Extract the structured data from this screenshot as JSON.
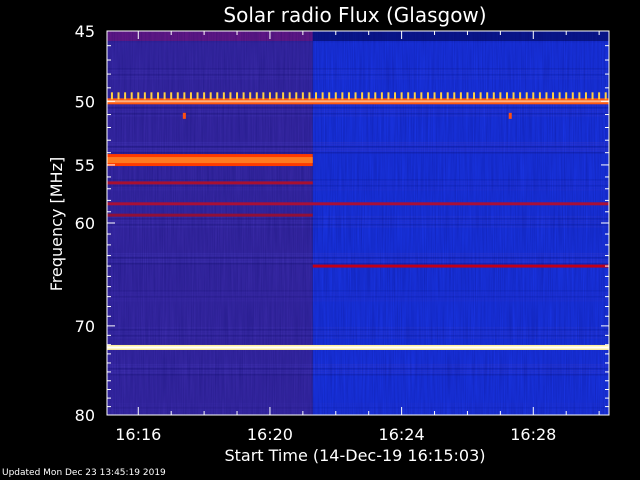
{
  "chart_data": {
    "type": "heatmap",
    "title": "Solar radio Flux (Glasgow)",
    "xlabel": "Start Time (14-Dec-19 16:15:03)",
    "ylabel": "Frequency [MHz]",
    "x_ticks": [
      "16:16",
      "16:20",
      "16:24",
      "16:28"
    ],
    "x_tick_minutes": [
      16,
      20,
      24,
      28
    ],
    "xlim_minutes": [
      15.05,
      30.3
    ],
    "y_ticks": [
      45,
      50,
      55,
      60,
      70,
      80
    ],
    "ylim": [
      45,
      80
    ],
    "y_scale": "log",
    "intensity_change_minute": 21.3,
    "bands": [
      {
        "freq_mhz": 50.0,
        "color": "#ff5a10",
        "extent": "full",
        "note": "strong line with periodic spikes"
      },
      {
        "freq_mhz": 51.1,
        "color": "#ff5010",
        "extent": "points",
        "minutes": [
          17.4,
          27.3
        ]
      },
      {
        "freq_mhz": 54.6,
        "color": "#ff3a00",
        "extent": "before_change"
      },
      {
        "freq_mhz": 56.5,
        "color": "#a81030",
        "extent": "before_change"
      },
      {
        "freq_mhz": 58.3,
        "color": "#a81038",
        "extent": "full"
      },
      {
        "freq_mhz": 59.3,
        "color": "#901038",
        "extent": "before_change"
      },
      {
        "freq_mhz": 64.0,
        "color": "#c00018",
        "extent": "after_change"
      },
      {
        "freq_mhz": 72.3,
        "color": "#fff0a0",
        "extent": "full",
        "note": "bright continuous emission line"
      }
    ],
    "colors": {
      "background_before": "#3a2aa8",
      "background_after": "#1a36e8",
      "top_edge_before": "#6a1a8a",
      "top_edge_after": "#0a1890"
    }
  },
  "footer": {
    "updated_text": "Updated Mon Dec 23 13:45:19 2019"
  }
}
